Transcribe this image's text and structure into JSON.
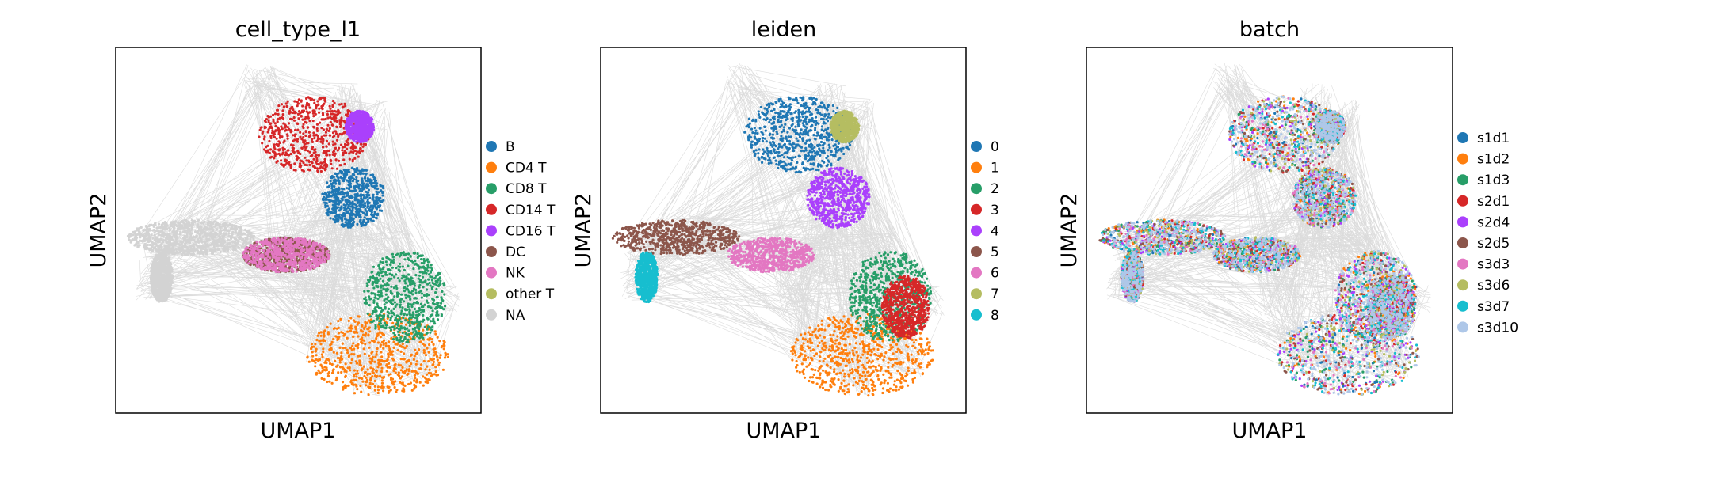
{
  "figure": {
    "colors": {
      "edge": "#808080",
      "frame": "#000000",
      "na": "#d3d3d3"
    }
  },
  "chart_data": [
    {
      "type": "scatter",
      "title": "cell_type_l1",
      "xlabel": "UMAP1",
      "ylabel": "UMAP2",
      "legend": "right",
      "grid": false,
      "ticks": false,
      "categories": [
        "B",
        "CD4 T",
        "CD8 T",
        "CD14 T",
        "CD16 T",
        "DC",
        "NK",
        "other T",
        "NA"
      ],
      "colors": [
        "#1f77b4",
        "#ff7f0e",
        "#279e68",
        "#d62728",
        "#aa40fc",
        "#8c564b",
        "#e377c2",
        "#b5bd61",
        "#d3d3d3"
      ]
    },
    {
      "type": "scatter",
      "title": "leiden",
      "xlabel": "UMAP1",
      "ylabel": "UMAP2",
      "legend": "right",
      "grid": false,
      "ticks": false,
      "categories": [
        "0",
        "1",
        "2",
        "3",
        "4",
        "5",
        "6",
        "7",
        "8"
      ],
      "colors": [
        "#1f77b4",
        "#ff7f0e",
        "#279e68",
        "#d62728",
        "#aa40fc",
        "#8c564b",
        "#e377c2",
        "#b5bd61",
        "#17becf"
      ]
    },
    {
      "type": "scatter",
      "title": "batch",
      "xlabel": "UMAP1",
      "ylabel": "UMAP2",
      "legend": "right",
      "grid": false,
      "ticks": false,
      "categories": [
        "s1d1",
        "s1d2",
        "s1d3",
        "s2d1",
        "s2d4",
        "s2d5",
        "s3d3",
        "s3d6",
        "s3d7",
        "s3d10"
      ],
      "colors": [
        "#1f77b4",
        "#ff7f0e",
        "#279e68",
        "#d62728",
        "#aa40fc",
        "#8c564b",
        "#e377c2",
        "#b5bd61",
        "#17becf",
        "#aec7e8"
      ]
    }
  ]
}
